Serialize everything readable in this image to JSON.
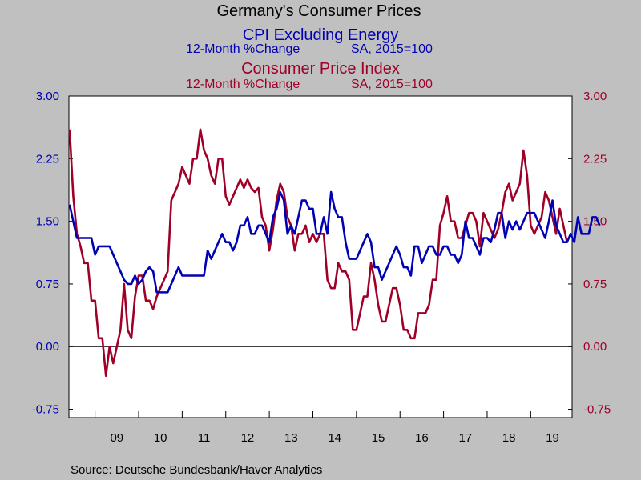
{
  "header": {
    "title": "Germany's Consumer Prices",
    "series1_title": "CPI Excluding Energy",
    "series1_sub_left": "12-Month %Change",
    "series1_sub_right": "SA, 2015=100",
    "series2_title": "Consumer Price Index",
    "series2_sub_left": "12-Month %Change",
    "series2_sub_right": "SA, 2015=100"
  },
  "footer": {
    "source": "Source:  Deutsche Bundesbank/Haver Analytics"
  },
  "colors": {
    "series1": "#0000b4",
    "series2": "#a00028",
    "left_axis": "#0000b4",
    "right_axis": "#a00028"
  },
  "chart_data": {
    "type": "line",
    "x_start": 2008.4167,
    "x_step": 0.0833333,
    "xlim": [
      2008.4,
      2019.95
    ],
    "ylim": [
      -0.85,
      3.0
    ],
    "yticks": [
      -0.75,
      0.0,
      0.75,
      1.5,
      2.25,
      3.0
    ],
    "ytick_labels": [
      "-0.75",
      "0.00",
      "0.75",
      "1.50",
      "2.25",
      "3.00"
    ],
    "xtick_labels": [
      "09",
      "10",
      "11",
      "12",
      "13",
      "14",
      "15",
      "16",
      "17",
      "18",
      "19"
    ],
    "xtick_years": [
      2009,
      2010,
      2011,
      2012,
      2013,
      2014,
      2015,
      2016,
      2017,
      2018,
      2019
    ],
    "zero_line": 0,
    "series": [
      {
        "name": "CPI Excluding Energy",
        "color": "#0000b4",
        "values": [
          1.7,
          1.5,
          1.3,
          1.3,
          1.3,
          1.3,
          1.3,
          1.1,
          1.2,
          1.2,
          1.2,
          1.2,
          1.1,
          1.0,
          0.9,
          0.8,
          0.75,
          0.75,
          0.85,
          0.75,
          0.8,
          0.9,
          0.95,
          0.9,
          0.65,
          0.65,
          0.65,
          0.65,
          0.75,
          0.85,
          0.95,
          0.85,
          0.85,
          0.85,
          0.85,
          0.85,
          0.85,
          0.85,
          1.15,
          1.05,
          1.15,
          1.25,
          1.35,
          1.25,
          1.25,
          1.15,
          1.25,
          1.45,
          1.45,
          1.55,
          1.35,
          1.35,
          1.45,
          1.45,
          1.35,
          1.25,
          1.55,
          1.65,
          1.85,
          1.75,
          1.35,
          1.45,
          1.35,
          1.55,
          1.75,
          1.75,
          1.65,
          1.65,
          1.35,
          1.35,
          1.55,
          1.35,
          1.85,
          1.65,
          1.55,
          1.55,
          1.25,
          1.05,
          1.05,
          1.05,
          1.15,
          1.25,
          1.35,
          1.25,
          0.95,
          0.95,
          0.8,
          0.9,
          1.0,
          1.1,
          1.2,
          1.1,
          0.95,
          0.95,
          0.85,
          1.2,
          1.2,
          1.0,
          1.1,
          1.2,
          1.2,
          1.1,
          1.1,
          1.2,
          1.2,
          1.1,
          1.1,
          1.0,
          1.1,
          1.5,
          1.3,
          1.3,
          1.2,
          1.1,
          1.3,
          1.3,
          1.25,
          1.4,
          1.6,
          1.6,
          1.3,
          1.5,
          1.4,
          1.5,
          1.4,
          1.5,
          1.6,
          1.6,
          1.6,
          1.5,
          1.4,
          1.3,
          1.5,
          1.75,
          1.45,
          1.35,
          1.25,
          1.25,
          1.35,
          1.25,
          1.55,
          1.35,
          1.35,
          1.35,
          1.55,
          1.55,
          1.45
        ]
      },
      {
        "name": "Consumer Price Index",
        "color": "#a00028",
        "values": [
          2.6,
          1.8,
          1.35,
          1.2,
          1.0,
          1.0,
          0.55,
          0.55,
          0.1,
          0.1,
          -0.35,
          0.0,
          -0.2,
          0.0,
          0.2,
          0.75,
          0.2,
          0.1,
          0.6,
          0.85,
          0.85,
          0.55,
          0.55,
          0.45,
          0.6,
          0.7,
          0.8,
          0.9,
          1.75,
          1.85,
          1.95,
          2.15,
          2.05,
          1.95,
          2.25,
          2.25,
          2.6,
          2.35,
          2.25,
          2.05,
          1.95,
          2.25,
          2.25,
          1.8,
          1.7,
          1.8,
          1.9,
          2.0,
          1.9,
          2.0,
          1.9,
          1.85,
          1.9,
          1.55,
          1.45,
          1.15,
          1.4,
          1.75,
          1.95,
          1.85,
          1.55,
          1.45,
          1.15,
          1.35,
          1.35,
          1.45,
          1.25,
          1.35,
          1.25,
          1.35,
          1.35,
          0.8,
          0.7,
          0.7,
          1.0,
          0.9,
          0.9,
          0.8,
          0.2,
          0.2,
          0.4,
          0.6,
          0.6,
          1.0,
          0.8,
          0.5,
          0.3,
          0.3,
          0.5,
          0.7,
          0.7,
          0.5,
          0.2,
          0.2,
          0.1,
          0.1,
          0.4,
          0.4,
          0.4,
          0.5,
          0.8,
          0.8,
          1.45,
          1.6,
          1.8,
          1.5,
          1.5,
          1.3,
          1.3,
          1.45,
          1.6,
          1.6,
          1.5,
          1.2,
          1.6,
          1.5,
          1.4,
          1.3,
          1.4,
          1.6,
          1.85,
          1.95,
          1.75,
          1.85,
          1.95,
          2.35,
          2.05,
          1.45,
          1.35,
          1.45,
          1.55,
          1.85,
          1.75,
          1.55,
          1.35,
          1.65,
          1.45,
          1.25
        ]
      }
    ]
  }
}
